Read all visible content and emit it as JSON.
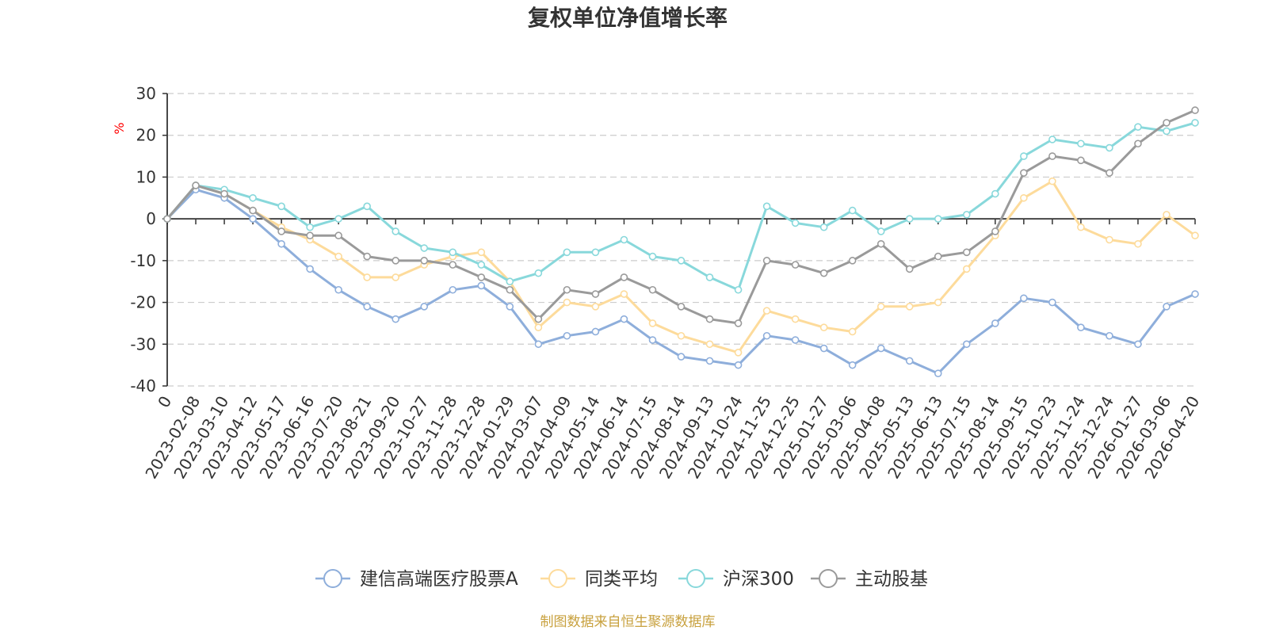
{
  "chart_data": {
    "type": "line",
    "title": "复权单位净值增长率",
    "ylabel": "%",
    "ylim": [
      -40,
      30
    ],
    "yticks": [
      30,
      20,
      10,
      0,
      -10,
      -20,
      -30,
      -40
    ],
    "grid": true,
    "legend_position": "bottom",
    "source": "制图数据来自恒生聚源数据库",
    "categories": [
      "0",
      "2023-02-08",
      "2023-03-10",
      "2023-04-12",
      "2023-05-17",
      "2023-06-16",
      "2023-07-20",
      "2023-08-21",
      "2023-09-20",
      "2023-10-27",
      "2023-11-28",
      "2023-12-28",
      "2024-01-29",
      "2024-03-07",
      "2024-04-09",
      "2024-05-14",
      "2024-06-14",
      "2024-07-15",
      "2024-08-14",
      "2024-09-13",
      "2024-10-24",
      "2024-11-25",
      "2024-12-25",
      "2025-01-27",
      "2025-03-06",
      "2025-04-08",
      "2025-05-13",
      "2025-06-13",
      "2025-07-15",
      "2025-08-14",
      "2025-09-15",
      "2025-10-23",
      "2025-11-24",
      "2025-12-24",
      "2026-01-27",
      "2026-03-06",
      "2026-04-20"
    ],
    "series": [
      {
        "name": "建信高端医疗股票A",
        "color": "#8eaedb",
        "values": [
          0,
          7,
          5,
          0,
          -6,
          -12,
          -17,
          -21,
          -24,
          -21,
          -17,
          -16,
          -21,
          -30,
          -28,
          -27,
          -24,
          -29,
          -33,
          -34,
          -35,
          -28,
          -29,
          -31,
          -35,
          -31,
          -34,
          -37,
          -30,
          -25,
          -19,
          -20,
          -26,
          -28,
          -30,
          -21,
          -18
        ]
      },
      {
        "name": "同类平均",
        "color": "#fddb9b",
        "values": [
          0,
          8,
          6,
          2,
          -2,
          -5,
          -9,
          -14,
          -14,
          -11,
          -9,
          -8,
          -15,
          -26,
          -20,
          -21,
          -18,
          -25,
          -28,
          -30,
          -32,
          -22,
          -24,
          -26,
          -27,
          -21,
          -21,
          -20,
          -12,
          -4,
          5,
          9,
          -2,
          -5,
          -6,
          1,
          -4
        ]
      },
      {
        "name": "沪深300",
        "color": "#88d8db",
        "values": [
          0,
          8,
          7,
          5,
          3,
          -2,
          0,
          3,
          -3,
          -7,
          -8,
          -11,
          -15,
          -13,
          -8,
          -8,
          -5,
          -9,
          -10,
          -14,
          -17,
          3,
          -1,
          -2,
          2,
          -3,
          0,
          0,
          1,
          6,
          15,
          19,
          18,
          17,
          22,
          21,
          23
        ]
      },
      {
        "name": "主动股基",
        "color": "#9a9a9a",
        "values": [
          0,
          8,
          6,
          2,
          -3,
          -4,
          -4,
          -9,
          -10,
          -10,
          -11,
          -14,
          -17,
          -24,
          -17,
          -18,
          -14,
          -17,
          -21,
          -24,
          -25,
          -10,
          -11,
          -13,
          -10,
          -6,
          -12,
          -9,
          -8,
          -3,
          11,
          15,
          14,
          11,
          18,
          23,
          26
        ]
      }
    ]
  }
}
